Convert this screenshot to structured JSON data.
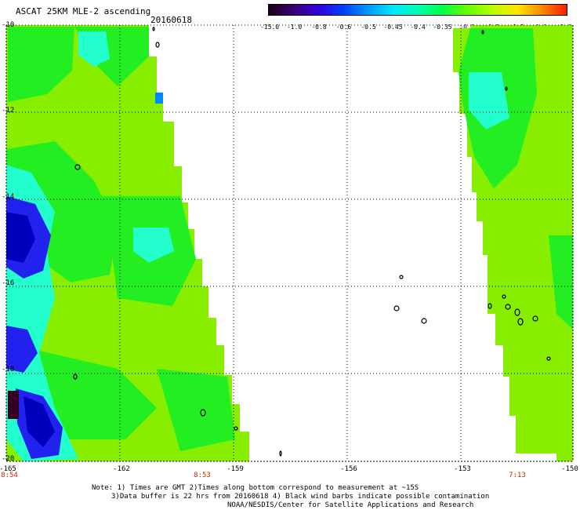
{
  "header": {
    "title": "ASCAT 25KM MLE-2 ascending",
    "date": "20160618"
  },
  "colorbar": {
    "ticks": [
      "-15.0",
      "-1.0",
      "-0.8",
      "-0.6",
      "-0.5",
      "-0.45",
      "-0.4",
      "-0.35",
      "-0.3",
      "-0.2",
      "-0.1",
      "0.0",
      "1.0"
    ],
    "colors": [
      "#1a0012",
      "#3b0077",
      "#3000e0",
      "#0040ff",
      "#0099ff",
      "#00e6ff",
      "#00ffb0",
      "#00ff44",
      "#66ff00",
      "#b8ff00",
      "#ffe600",
      "#ff8800",
      "#ff1a00"
    ]
  },
  "map": {
    "lat_labels": [
      "-10",
      "-12",
      "-14",
      "-16",
      "-18",
      "-20"
    ],
    "lon_labels": [
      "-165",
      "-162",
      "-159",
      "-156",
      "-153",
      "-150"
    ],
    "lon_range": [
      -165,
      -150
    ],
    "lat_range": [
      -10,
      -20
    ],
    "palette": {
      "green": "#22ee22",
      "lime": "#88ee00",
      "cyan": "#22ffcc",
      "blue": "#2222ee",
      "darkblue": "#0000bb",
      "darkred": "#330022"
    }
  },
  "time_labels": [
    "8:54",
    "8:53",
    "7:13"
  ],
  "notes": [
    "Note: 1) Times are GMT 2)Times along bottom correspond to measurement at ~15S",
    "3)Data buffer is 22 hrs from 20160618 4) Black wind barbs indicate possible contamination",
    "NOAA/NESDIS/Center for Satellite Applications and Research"
  ]
}
